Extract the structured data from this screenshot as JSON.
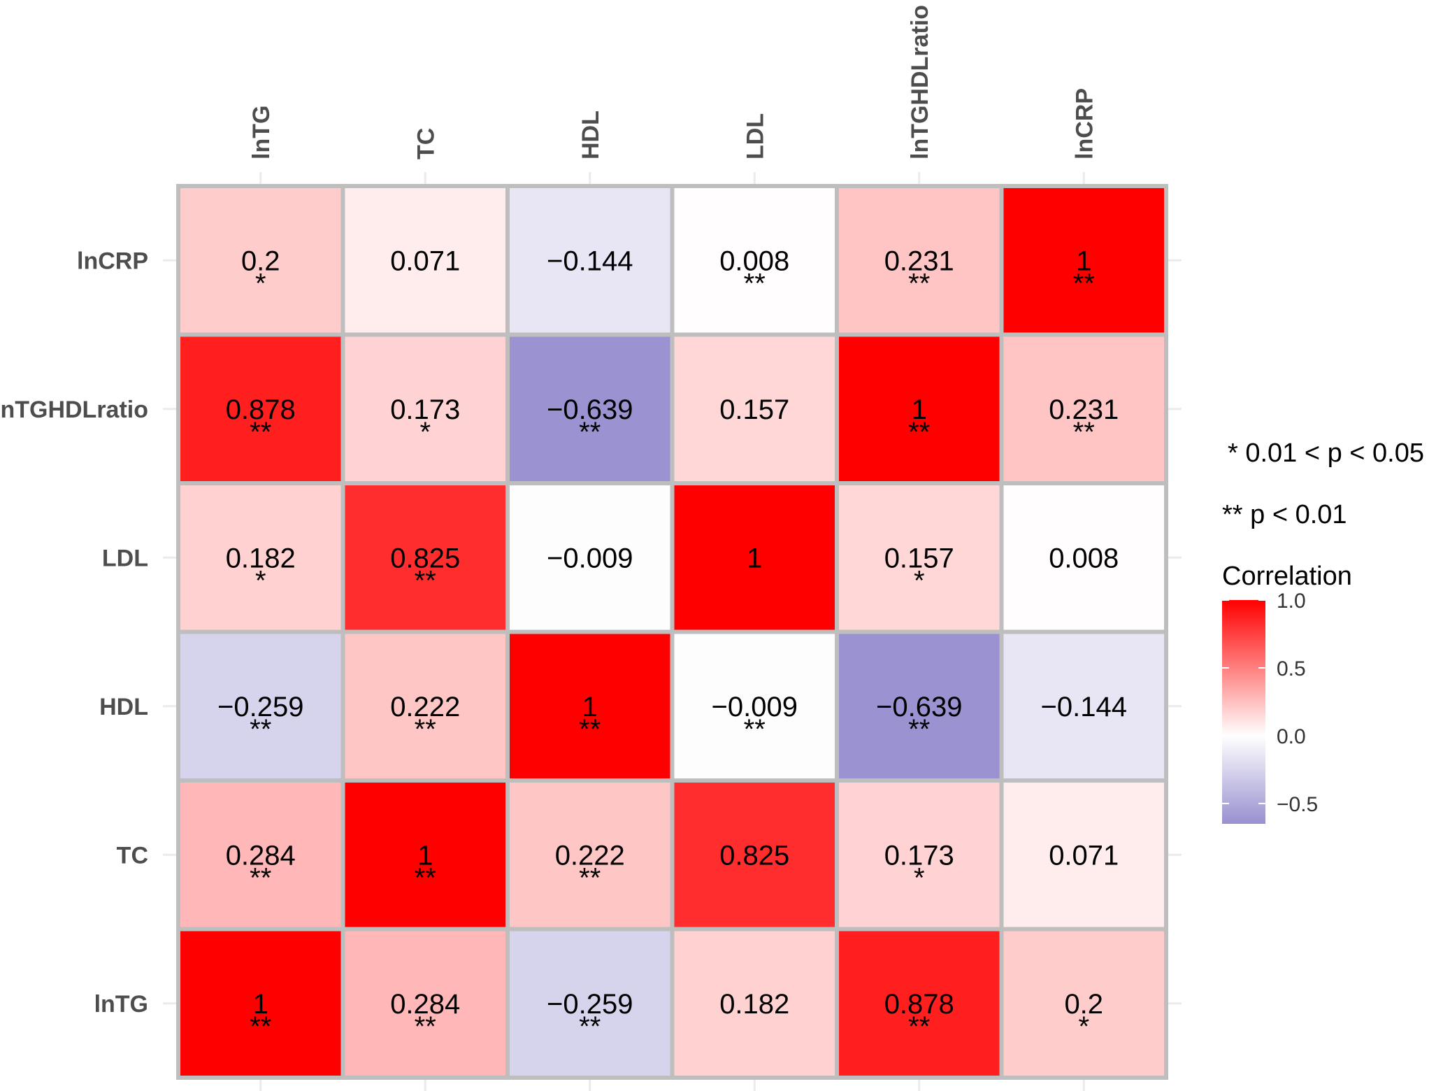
{
  "chart_data": {
    "type": "heatmap",
    "title": "",
    "xlabel": "",
    "ylabel": "",
    "x_labels": [
      "lnTG",
      "TC",
      "HDL",
      "LDL",
      "lnTGHDLratio",
      "lnCRP"
    ],
    "y_labels_top_to_bottom": [
      "lnCRP",
      "lnTGHDLratio",
      "LDL",
      "HDL",
      "TC",
      "lnTG"
    ],
    "rows": [
      {
        "label": "lnCRP",
        "values": [
          0.2,
          0.071,
          -0.144,
          0.008,
          0.231,
          1
        ],
        "text": [
          "0.2",
          "0.071",
          "−0.144",
          "0.008",
          "0.231",
          "1"
        ],
        "sig": [
          "*",
          "",
          "",
          "**",
          "**",
          "**"
        ]
      },
      {
        "label": "lnTGHDLratio",
        "values": [
          0.878,
          0.173,
          -0.639,
          0.157,
          1,
          0.231
        ],
        "text": [
          "0.878",
          "0.173",
          "−0.639",
          "0.157",
          "1",
          "0.231"
        ],
        "sig": [
          "**",
          "*",
          "**",
          "",
          "**",
          "**"
        ]
      },
      {
        "label": "LDL",
        "values": [
          0.182,
          0.825,
          -0.009,
          1,
          0.157,
          0.008
        ],
        "text": [
          "0.182",
          "0.825",
          "−0.009",
          "1",
          "0.157",
          "0.008"
        ],
        "sig": [
          "*",
          "**",
          "",
          "",
          "*",
          ""
        ]
      },
      {
        "label": "HDL",
        "values": [
          -0.259,
          0.222,
          1,
          -0.009,
          -0.639,
          -0.144
        ],
        "text": [
          "−0.259",
          "0.222",
          "1",
          "−0.009",
          "−0.639",
          "−0.144"
        ],
        "sig": [
          "**",
          "**",
          "**",
          "**",
          "**",
          ""
        ]
      },
      {
        "label": "TC",
        "values": [
          0.284,
          1,
          0.222,
          0.825,
          0.173,
          0.071
        ],
        "text": [
          "0.284",
          "1",
          "0.222",
          "0.825",
          "0.173",
          "0.071"
        ],
        "sig": [
          "**",
          "**",
          "**",
          "",
          "*",
          ""
        ]
      },
      {
        "label": "lnTG",
        "values": [
          1,
          0.284,
          -0.259,
          0.182,
          0.878,
          0.2
        ],
        "text": [
          "1",
          "0.284",
          "−0.259",
          "0.182",
          "0.878",
          "0.2"
        ],
        "sig": [
          "**",
          "**",
          "**",
          "",
          "**",
          "*"
        ]
      }
    ],
    "significance_notes": [
      "* 0.01 < p < 0.05",
      "** p < 0.01"
    ],
    "legend": {
      "title": "Correlation",
      "placement": "right",
      "range": [
        -0.65,
        1.0
      ],
      "ticks": [
        1.0,
        0.5,
        0.0,
        -0.5
      ],
      "tick_labels": [
        "1.0",
        "0.5",
        "0.0",
        "−0.5"
      ]
    },
    "colors": {
      "high": "#ff0000",
      "mid": "#ffffff",
      "low": "#9890d0",
      "border": "#bebebe",
      "tick": "#ebebeb"
    }
  }
}
